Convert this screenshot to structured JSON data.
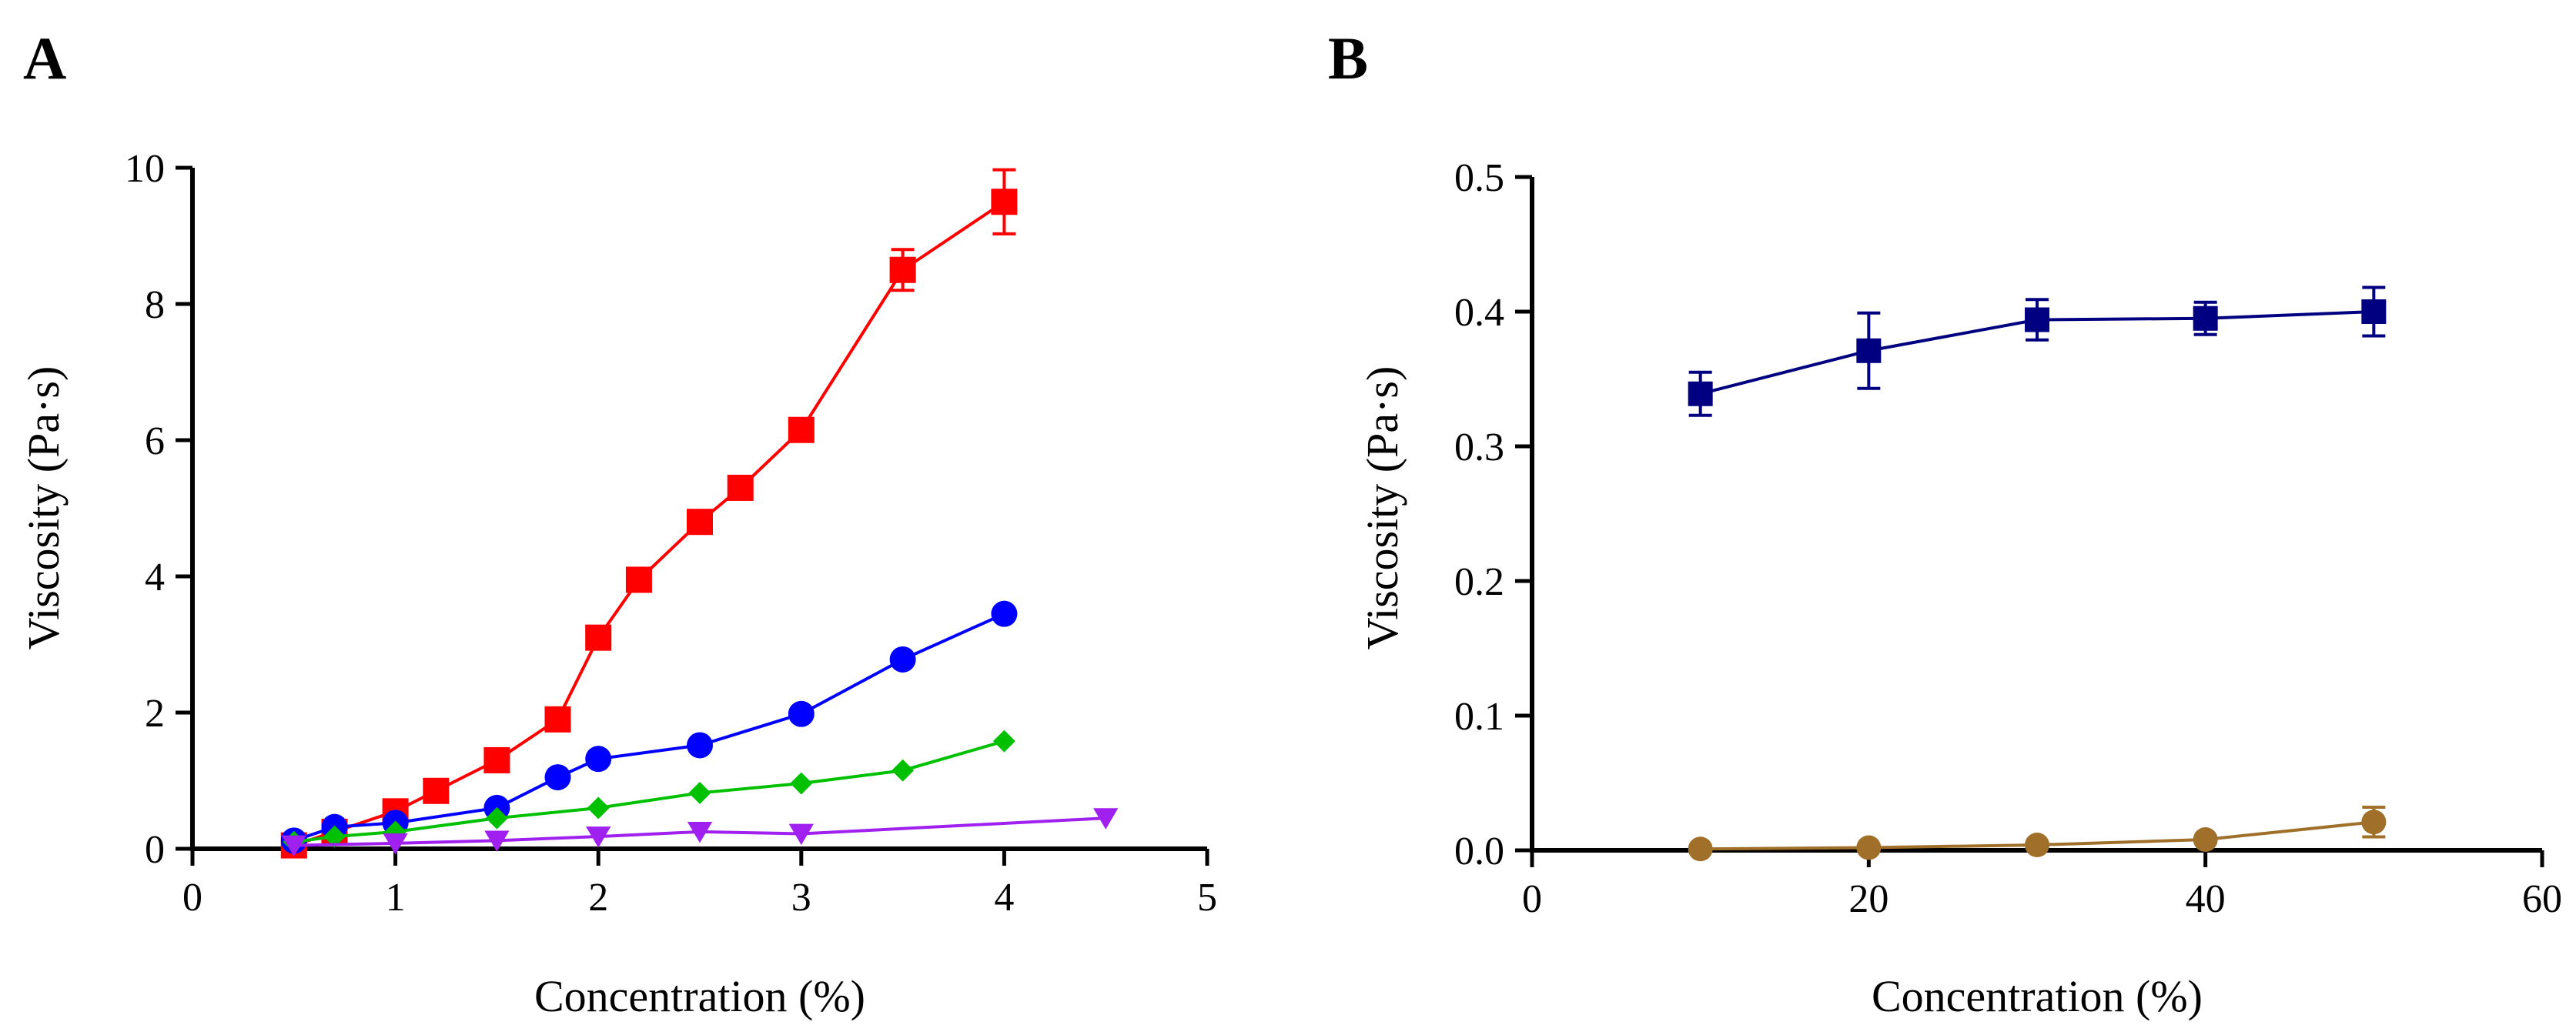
{
  "chart_data": [
    {
      "panel": "A",
      "type": "line",
      "title": "",
      "xlabel": "Concentration (%)",
      "ylabel": "Viscosity (Pa·s)",
      "xlim": [
        0,
        5
      ],
      "ylim": [
        0,
        10
      ],
      "xticks": [
        "0",
        "1",
        "2",
        "3",
        "4",
        "5"
      ],
      "yticks": [
        "0",
        "2",
        "4",
        "6",
        "8",
        "10"
      ],
      "grid": false,
      "legend": null,
      "series": [
        {
          "name": "red squares",
          "color": "#ff0000",
          "marker": "square",
          "x": [
            0.5,
            0.7,
            1.0,
            1.2,
            1.5,
            1.8,
            2.0,
            2.2,
            2.5,
            2.7,
            3.0,
            3.5,
            4.0
          ],
          "values": [
            0.05,
            0.25,
            0.55,
            0.85,
            1.3,
            1.9,
            3.1,
            3.95,
            4.8,
            5.3,
            6.15,
            8.5,
            9.5
          ],
          "errors": [
            0,
            0,
            0,
            0,
            0,
            0,
            0,
            0,
            0,
            0,
            0,
            0.3,
            0.47
          ]
        },
        {
          "name": "blue circles",
          "color": "#0000ff",
          "marker": "circle",
          "x": [
            0.5,
            0.7,
            1.0,
            1.5,
            1.8,
            2.0,
            2.5,
            3.0,
            3.5,
            4.0
          ],
          "values": [
            0.12,
            0.32,
            0.38,
            0.6,
            1.05,
            1.32,
            1.52,
            1.98,
            2.78,
            3.45
          ],
          "errors": [
            0,
            0,
            0,
            0,
            0,
            0,
            0,
            0,
            0,
            0
          ]
        },
        {
          "name": "green diamonds",
          "color": "#00c000",
          "marker": "diamond",
          "x": [
            0.5,
            0.7,
            1.0,
            1.5,
            2.0,
            2.5,
            3.0,
            3.5,
            4.0
          ],
          "values": [
            0.1,
            0.18,
            0.25,
            0.45,
            0.6,
            0.82,
            0.96,
            1.15,
            1.58
          ],
          "errors": [
            0,
            0,
            0,
            0,
            0,
            0,
            0,
            0,
            0
          ]
        },
        {
          "name": "purple triangles",
          "color": "#a020f0",
          "marker": "triangle-down",
          "x": [
            0.5,
            1.0,
            1.5,
            2.0,
            2.5,
            3.0,
            4.5
          ],
          "values": [
            0.05,
            0.08,
            0.12,
            0.18,
            0.25,
            0.22,
            0.45
          ],
          "errors": [
            0,
            0,
            0,
            0,
            0,
            0,
            0
          ]
        }
      ]
    },
    {
      "panel": "B",
      "type": "line",
      "title": "",
      "xlabel": "Concentration (%)",
      "ylabel": "Viscosity (Pa·s)",
      "xlim": [
        0,
        60
      ],
      "ylim": [
        0,
        0.5
      ],
      "xticks": [
        "0",
        "20",
        "40",
        "60"
      ],
      "yticks": [
        "0.0",
        "0.1",
        "0.2",
        "0.3",
        "0.4",
        "0.5"
      ],
      "grid": false,
      "legend": null,
      "series": [
        {
          "name": "navy squares",
          "color": "#000080",
          "marker": "square",
          "x": [
            10,
            20,
            30,
            40,
            50
          ],
          "values": [
            0.339,
            0.371,
            0.394,
            0.395,
            0.4
          ],
          "errors": [
            0.016,
            0.028,
            0.015,
            0.012,
            0.018
          ]
        },
        {
          "name": "brown circles",
          "color": "#a0702a",
          "marker": "circle",
          "x": [
            10,
            20,
            30,
            40,
            50
          ],
          "values": [
            0.001,
            0.002,
            0.004,
            0.008,
            0.021
          ],
          "errors": [
            0.001,
            0.001,
            0.001,
            0.002,
            0.011
          ]
        }
      ]
    }
  ]
}
